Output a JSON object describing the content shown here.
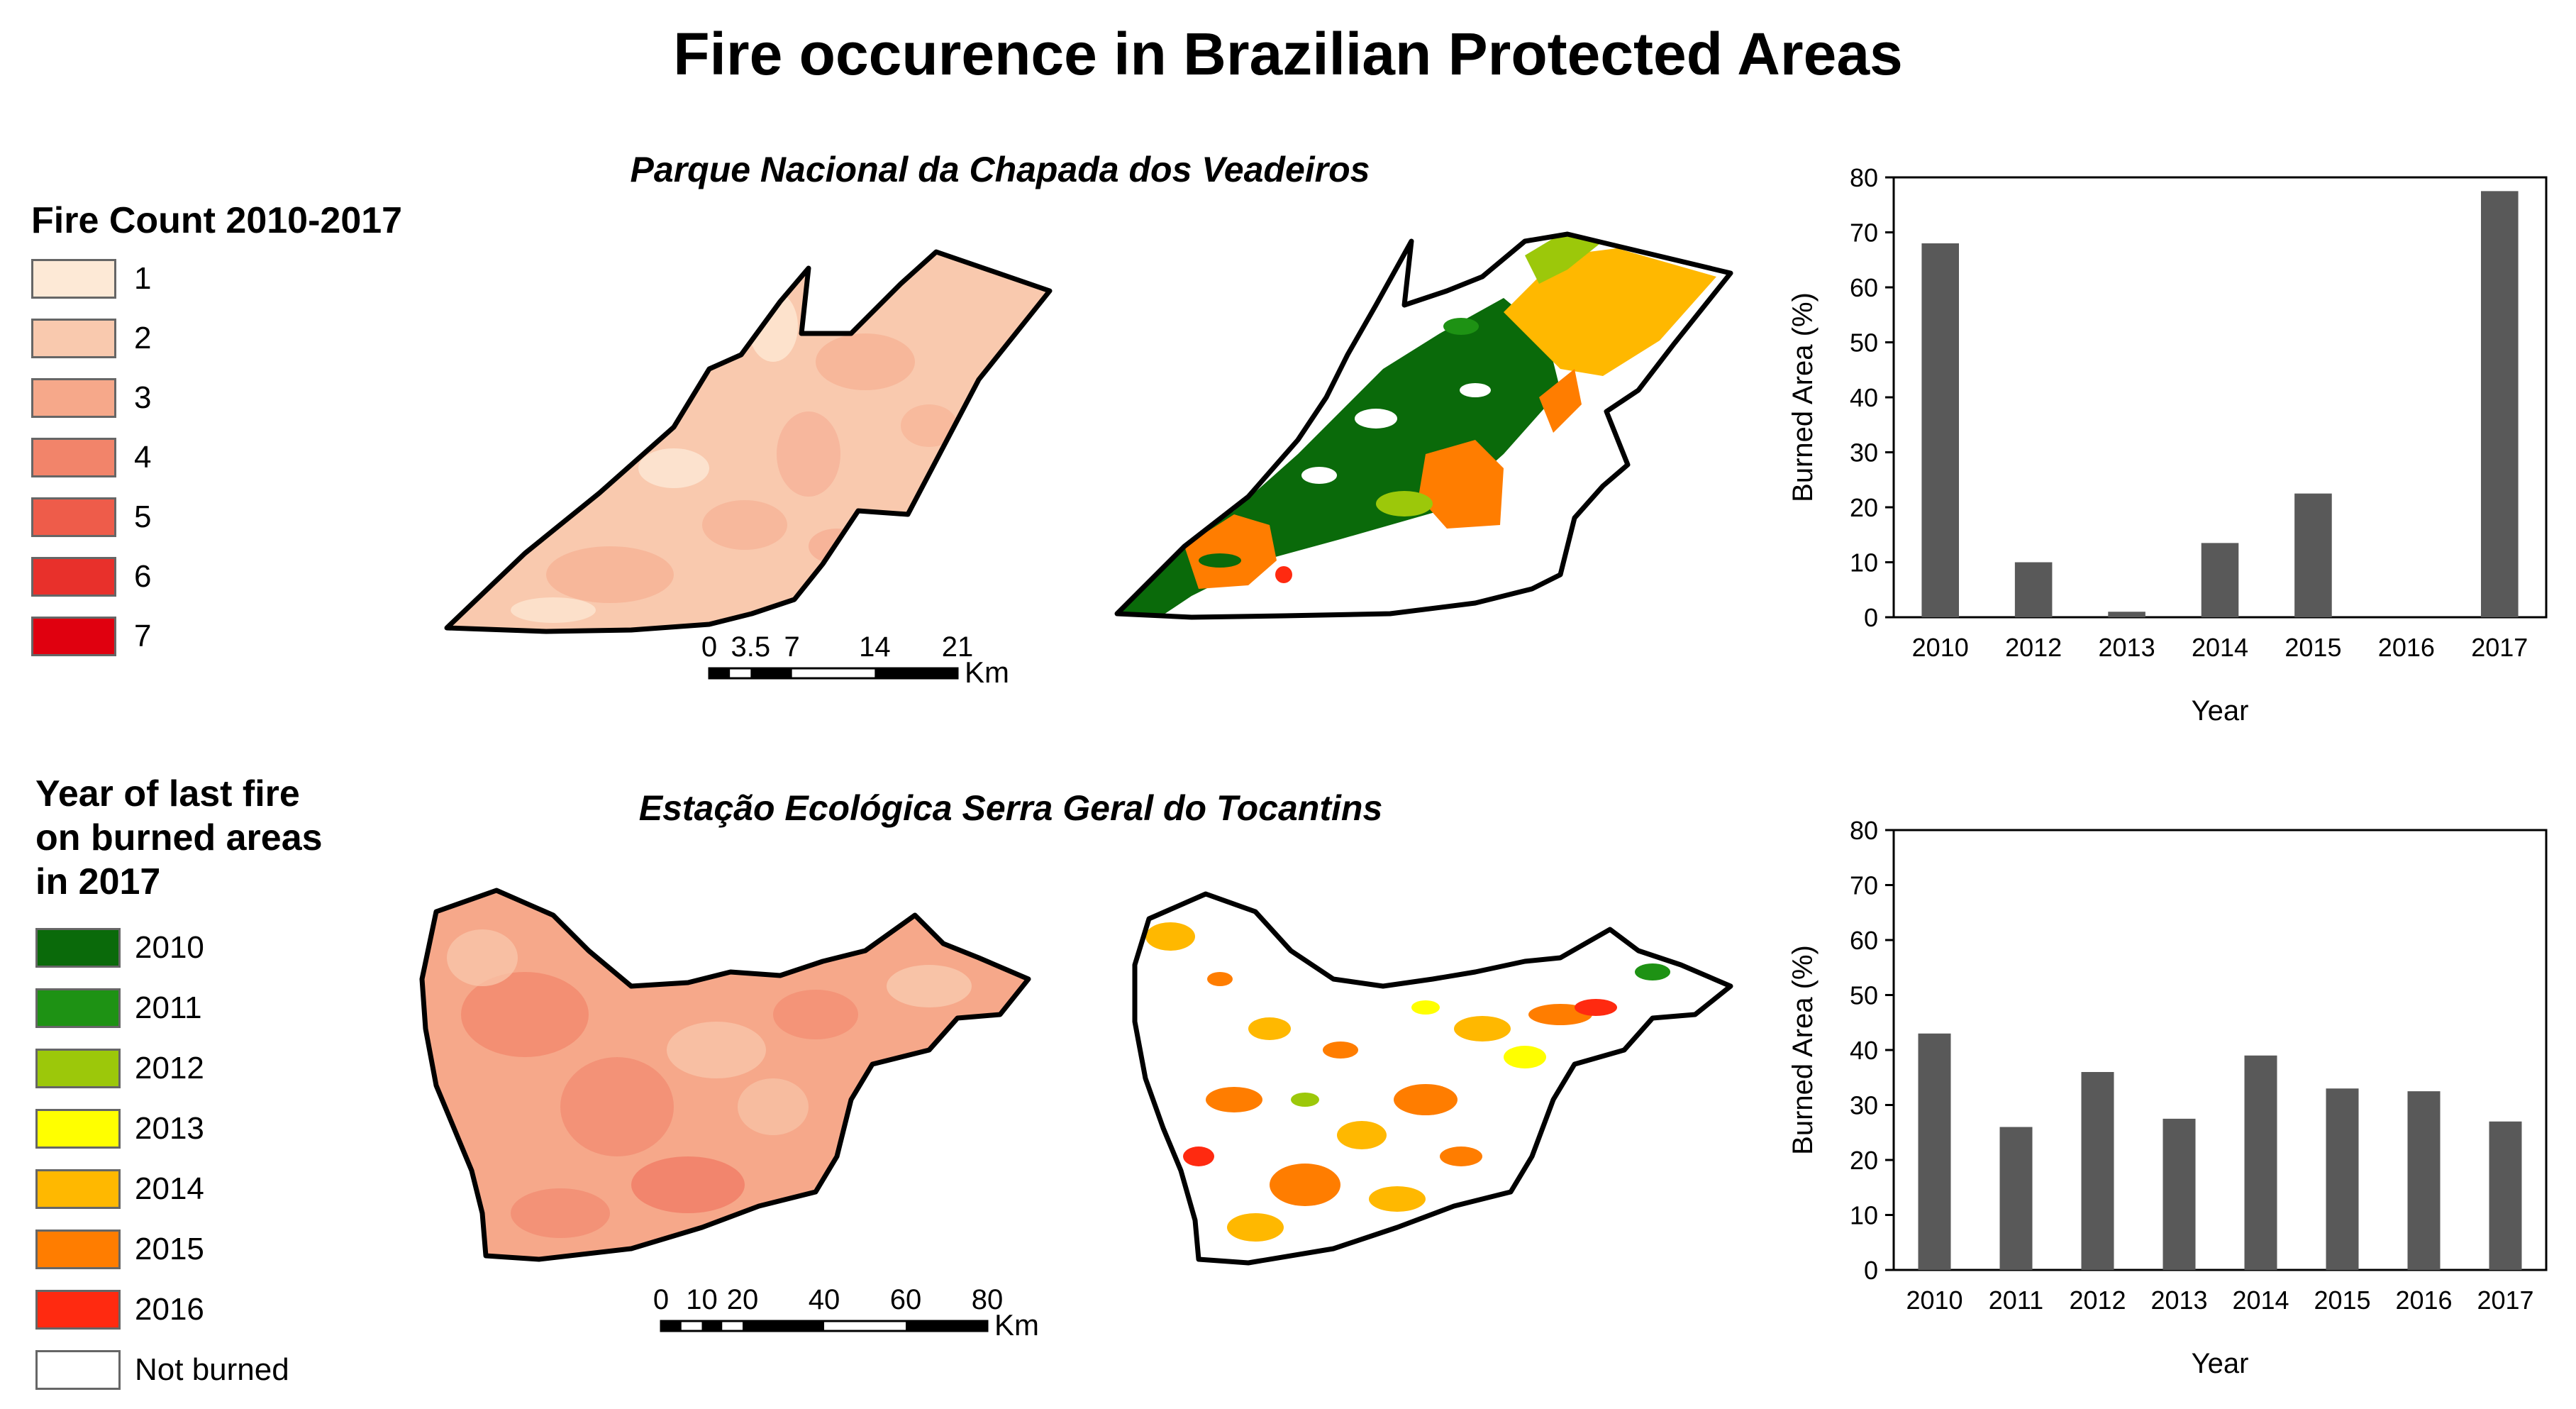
{
  "title": "Fire occurence in Brazilian Protected Areas",
  "map_titles": [
    "Parque Nacional da Chapada dos Veadeiros",
    "Estação Ecológica Serra Geral do Tocantins"
  ],
  "fire_count_legend": {
    "title": "Fire Count 2010-2017",
    "items": [
      {
        "label": "1",
        "color": "#fde9d6"
      },
      {
        "label": "2",
        "color": "#f9c9ae"
      },
      {
        "label": "3",
        "color": "#f6a88a"
      },
      {
        "label": "4",
        "color": "#f2846a"
      },
      {
        "label": "5",
        "color": "#ee5c4a"
      },
      {
        "label": "6",
        "color": "#e8302b"
      },
      {
        "label": "7",
        "color": "#e0000f"
      }
    ]
  },
  "last_fire_legend": {
    "title": "Year of last fire\non burned areas\nin 2017",
    "items": [
      {
        "label": "2010",
        "color": "#0a6a0a"
      },
      {
        "label": "2011",
        "color": "#1e9214"
      },
      {
        "label": "2012",
        "color": "#9cc80a"
      },
      {
        "label": "2013",
        "color": "#ffff00"
      },
      {
        "label": "2014",
        "color": "#ffb800"
      },
      {
        "label": "2015",
        "color": "#ff7d00"
      },
      {
        "label": "2016",
        "color": "#ff2a10"
      },
      {
        "label": "Not burned",
        "color": "#ffffff"
      }
    ]
  },
  "scale_bars": [
    {
      "ticks": [
        "0",
        "3.5",
        "7",
        "14",
        "21"
      ],
      "unit": "Km"
    },
    {
      "ticks": [
        "0",
        "10",
        "20",
        "40",
        "60",
        "80"
      ],
      "unit": "Km"
    }
  ],
  "chart_data": [
    {
      "type": "bar",
      "categories": [
        "2010",
        "2012",
        "2013",
        "2014",
        "2015",
        "2016",
        "2017"
      ],
      "values": [
        68,
        10,
        1,
        13.5,
        22.5,
        0,
        77.5
      ],
      "xlabel": "Year",
      "ylabel": "Burned Area (%)",
      "ylim": [
        0,
        80
      ],
      "yticks": [
        "0",
        "10",
        "20",
        "30",
        "40",
        "50",
        "60",
        "70",
        "80"
      ],
      "bar_color": "#595959",
      "grid": false
    },
    {
      "type": "bar",
      "categories": [
        "2010",
        "2011",
        "2012",
        "2013",
        "2014",
        "2015",
        "2016",
        "2017"
      ],
      "values": [
        43,
        26,
        36,
        27.5,
        39,
        33,
        32.5,
        27
      ],
      "xlabel": "Year",
      "ylabel": "Burned Area (%)",
      "ylim": [
        0,
        80
      ],
      "yticks": [
        "0",
        "10",
        "20",
        "30",
        "40",
        "50",
        "60",
        "70",
        "80"
      ],
      "bar_color": "#595959",
      "grid": false
    }
  ]
}
